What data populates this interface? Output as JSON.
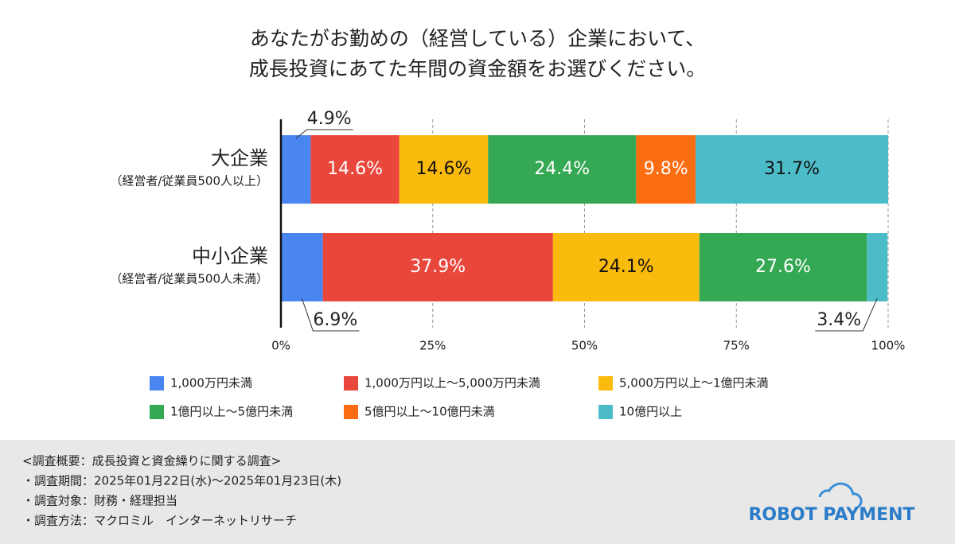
{
  "chart_data": {
    "type": "stacked-bar-horizontal",
    "title": [
      "あなたがお勤めの（経営している）企業において、",
      "成長投資にあてた年間の資金額をお選びください。"
    ],
    "categories": [
      "大企業",
      "中小企業"
    ],
    "category_notes": [
      "（経営者/従業員500人以上）",
      "（経営者/従業員500人未満）"
    ],
    "series": [
      {
        "name": "1,000万円未満",
        "color": "#4a86f0",
        "values": [
          4.9,
          6.9
        ],
        "value_labels": [
          "4.9%",
          "6.9%"
        ]
      },
      {
        "name": "1,000万円以上〜5,000万円未満",
        "color": "#e9463c",
        "values": [
          14.6,
          37.9
        ],
        "value_labels": [
          "14.6%",
          "37.9%"
        ]
      },
      {
        "name": "5,000万円以上〜1億円未満",
        "color": "#fbbb0c",
        "values": [
          14.6,
          24.1
        ],
        "value_labels": [
          "14.6%",
          "24.1%"
        ]
      },
      {
        "name": "1億円以上〜5億円未満",
        "color": "#35a853",
        "values": [
          24.4,
          27.6
        ],
        "value_labels": [
          "24.4%",
          "27.6%"
        ]
      },
      {
        "name": "5億円以上〜10億円未満",
        "color": "#fc6d12",
        "values": [
          9.8,
          0
        ],
        "value_labels": [
          "9.8%",
          null
        ]
      },
      {
        "name": "10億円以上",
        "color": "#4dbcc9",
        "values": [
          31.7,
          3.4
        ],
        "value_labels": [
          "31.7%",
          "3.4%"
        ]
      }
    ],
    "xlim": [
      0,
      100
    ],
    "xticks": [
      {
        "value": 0,
        "label": "0%"
      },
      {
        "value": 25,
        "label": "25%"
      },
      {
        "value": 50,
        "label": "50%"
      },
      {
        "value": 75,
        "label": "75%"
      },
      {
        "value": 100,
        "label": "100%"
      }
    ],
    "grid": true
  },
  "footer": {
    "notes": [
      "<調査概要：成長投資と資金繰りに関する調査>",
      "・調査期間：2025年01月22日(水)〜2025年01月23日(木)",
      "・調査対象：財務・経理担当",
      "・調査方法：マクロミル　インターネットリサーチ"
    ],
    "logo": "ROBOT PAYMENT"
  }
}
